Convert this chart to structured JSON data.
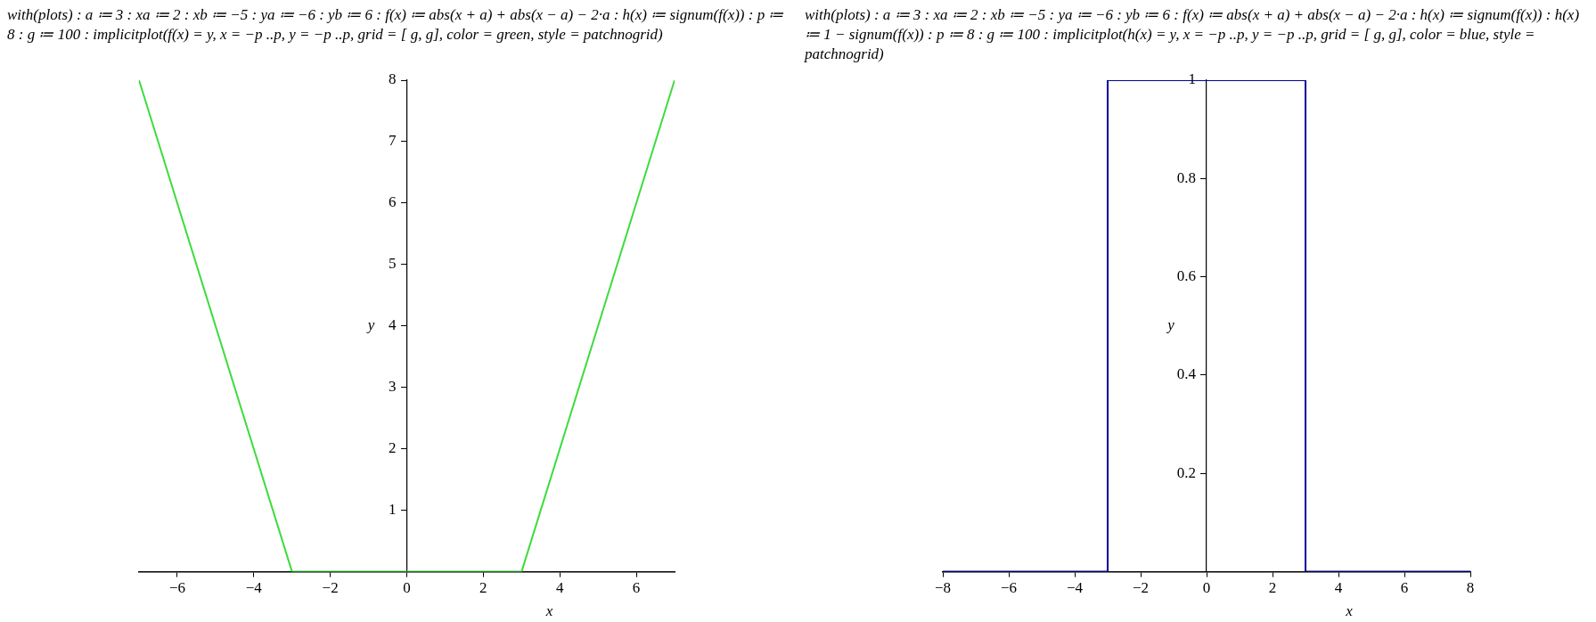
{
  "chart_data": [
    {
      "type": "line",
      "title": "with(plots) : a ≔ 3 : xa ≔ 2 : xb ≔ −5 : ya ≔ −6 : yb ≔ 6 : f(x) ≔ abs(x + a) + abs(x − a) − 2·a : h(x) ≔ signum(f(x)) : p ≔ 8 : g ≔ 100 : implicitplot(f(x) = y, x = −p ..p, y = −p ..p, grid = [ g, g], color = green, style = patchnogrid)",
      "xlabel": "x",
      "ylabel": "y",
      "x": [
        -7,
        -3,
        3,
        7
      ],
      "series": [
        {
          "color": "#3cdc3c",
          "values": [
            8,
            0,
            0,
            8
          ]
        }
      ],
      "xlim": [
        -7,
        7
      ],
      "ylim": [
        0,
        8
      ],
      "xticks": [
        {
          "value": -6,
          "label": "−6"
        },
        {
          "value": -4,
          "label": "−4"
        },
        {
          "value": -2,
          "label": "−2"
        },
        0,
        2,
        4,
        6
      ],
      "yticks": [
        1,
        2,
        3,
        4,
        5,
        6,
        7,
        8
      ],
      "grid": false,
      "legend": false,
      "marker": "none"
    },
    {
      "type": "line",
      "title": "with(plots) : a ≔ 3 : xa ≔ 2 : xb ≔ −5 : ya ≔ −6 : yb ≔ 6 : f(x) ≔ abs(x + a) + abs(x − a) − 2·a : h(x) ≔ signum(f(x)) : h(x) ≔ 1 − signum(f(x)) : p ≔ 8 : g ≔ 100 : implicitplot(h(x) = y, x = −p ..p, y = −p ..p, grid = [ g, g], color = blue, style = patchnogrid)",
      "xlabel": "x",
      "ylabel": "y",
      "x": [
        -8,
        -3,
        -3,
        3,
        3,
        8
      ],
      "series": [
        {
          "color": "#00009c",
          "values": [
            0,
            0,
            1,
            1,
            0,
            0
          ]
        }
      ],
      "xlim": [
        -8,
        8
      ],
      "ylim": [
        0,
        1
      ],
      "xticks": [
        {
          "value": -8,
          "label": "−8"
        },
        {
          "value": -6,
          "label": "−6"
        },
        {
          "value": -4,
          "label": "−4"
        },
        {
          "value": -2,
          "label": "−2"
        },
        0,
        2,
        4,
        6,
        8
      ],
      "yticks": [
        0.2,
        0.4,
        0.6,
        0.8,
        1
      ],
      "grid": false,
      "legend": false,
      "marker": "none"
    }
  ]
}
